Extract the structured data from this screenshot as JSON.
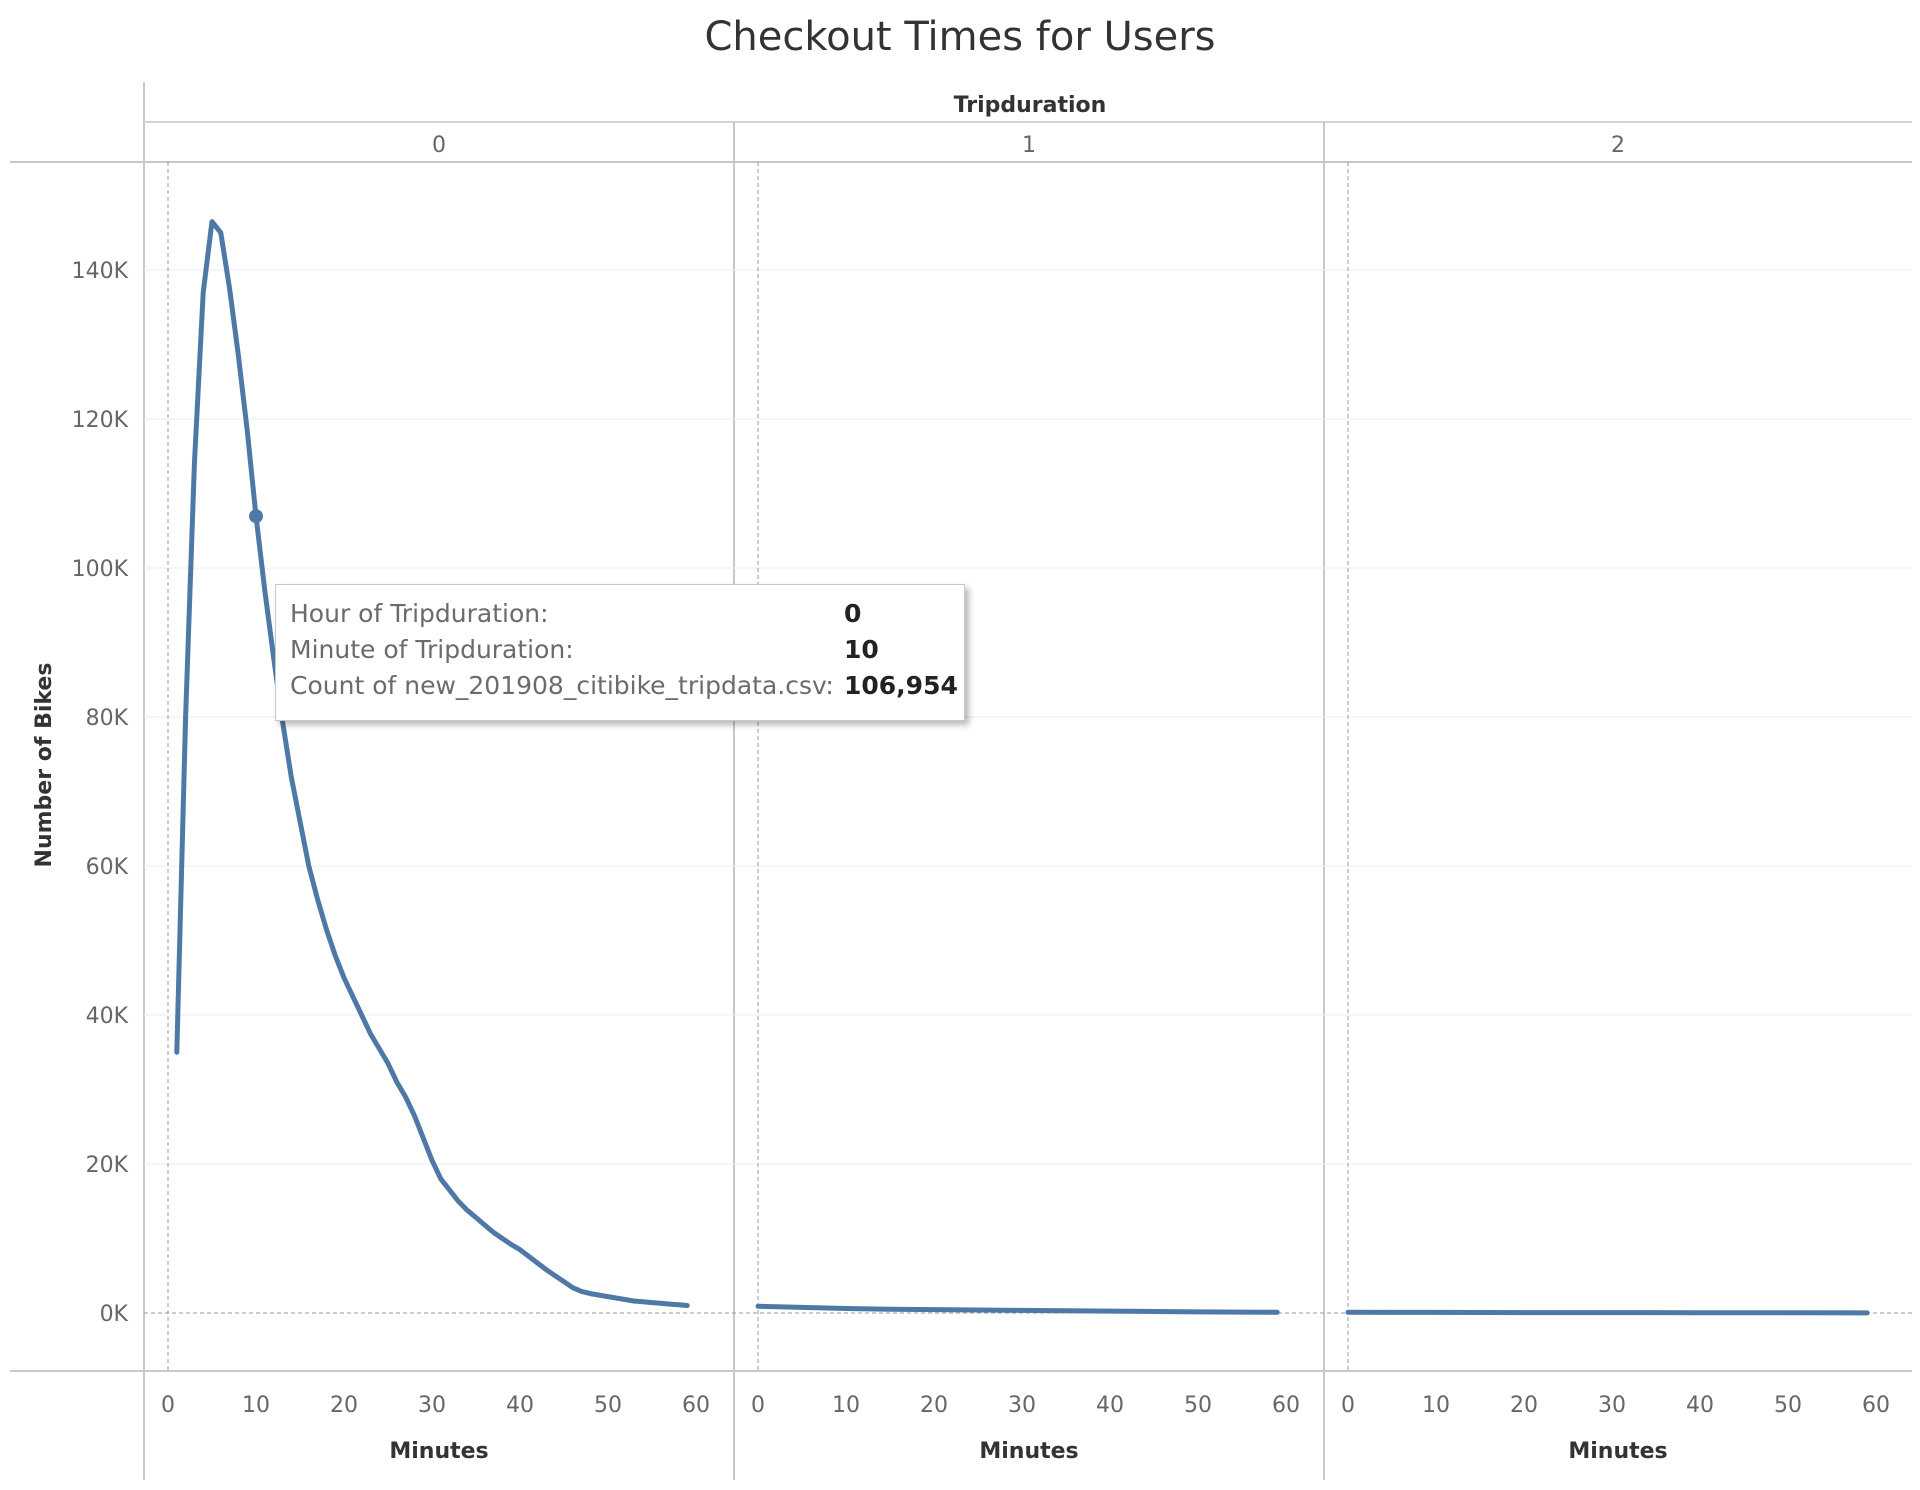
{
  "chart_data": {
    "type": "line",
    "title": "Checkout Times for Users",
    "column_header": "Tripduration",
    "ylabel": "Number of Bikes",
    "xlabel": "Minutes",
    "ylim": [
      0,
      150000
    ],
    "xlim": [
      0,
      60
    ],
    "y_ticks": [
      0,
      20000,
      40000,
      60000,
      80000,
      100000,
      120000,
      140000
    ],
    "y_tick_labels": [
      "0K",
      "20K",
      "40K",
      "60K",
      "80K",
      "100K",
      "120K",
      "140K"
    ],
    "x_ticks": [
      0,
      10,
      20,
      30,
      40,
      50,
      60
    ],
    "x_tick_labels": [
      "0",
      "10",
      "20",
      "30",
      "40",
      "50",
      "60"
    ],
    "line_color": "#4e79a7",
    "grid": true,
    "panes": [
      {
        "hour": "0",
        "series": {
          "x": [
            1,
            2,
            3,
            4,
            5,
            6,
            7,
            8,
            9,
            10,
            11,
            12,
            13,
            14,
            15,
            16,
            17,
            18,
            19,
            20,
            21,
            22,
            23,
            24,
            25,
            26,
            27,
            28,
            29,
            30,
            31,
            32,
            33,
            34,
            35,
            36,
            37,
            38,
            39,
            40,
            41,
            42,
            43,
            44,
            45,
            46,
            47,
            48,
            49,
            50,
            51,
            52,
            53,
            54,
            55,
            56,
            57,
            58,
            59
          ],
          "y": [
            35000,
            80000,
            114000,
            137000,
            146500,
            145000,
            137500,
            128500,
            118500,
            106954,
            97000,
            88000,
            79500,
            72000,
            66000,
            60000,
            55500,
            51500,
            48000,
            45000,
            42500,
            40000,
            37500,
            35500,
            33500,
            31000,
            29000,
            26500,
            23500,
            20500,
            18000,
            16500,
            15000,
            13800,
            12800,
            11800,
            10800,
            10000,
            9200,
            8500,
            7600,
            6700,
            5800,
            5000,
            4200,
            3400,
            2900,
            2600,
            2400,
            2200,
            2000,
            1800,
            1600,
            1500,
            1400,
            1300,
            1200,
            1100,
            1000
          ]
        }
      },
      {
        "hour": "1",
        "series": {
          "x": [
            0,
            5,
            10,
            15,
            20,
            25,
            30,
            35,
            40,
            45,
            50,
            55,
            59
          ],
          "y": [
            900,
            750,
            600,
            500,
            450,
            400,
            350,
            300,
            250,
            200,
            150,
            120,
            100
          ]
        }
      },
      {
        "hour": "2",
        "series": {
          "x": [
            0,
            10,
            20,
            30,
            40,
            50,
            59
          ],
          "y": [
            100,
            80,
            60,
            50,
            40,
            30,
            20
          ]
        }
      }
    ],
    "highlight": {
      "pane": 0,
      "x": 10,
      "y": 106954
    },
    "tooltip": {
      "rows": [
        {
          "label": "Hour of Tripduration:",
          "value": "0"
        },
        {
          "label": "Minute of Tripduration:",
          "value": "10"
        },
        {
          "label": "Count of new_201908_citibike_tripdata.csv:",
          "value": "106,954"
        }
      ]
    }
  }
}
